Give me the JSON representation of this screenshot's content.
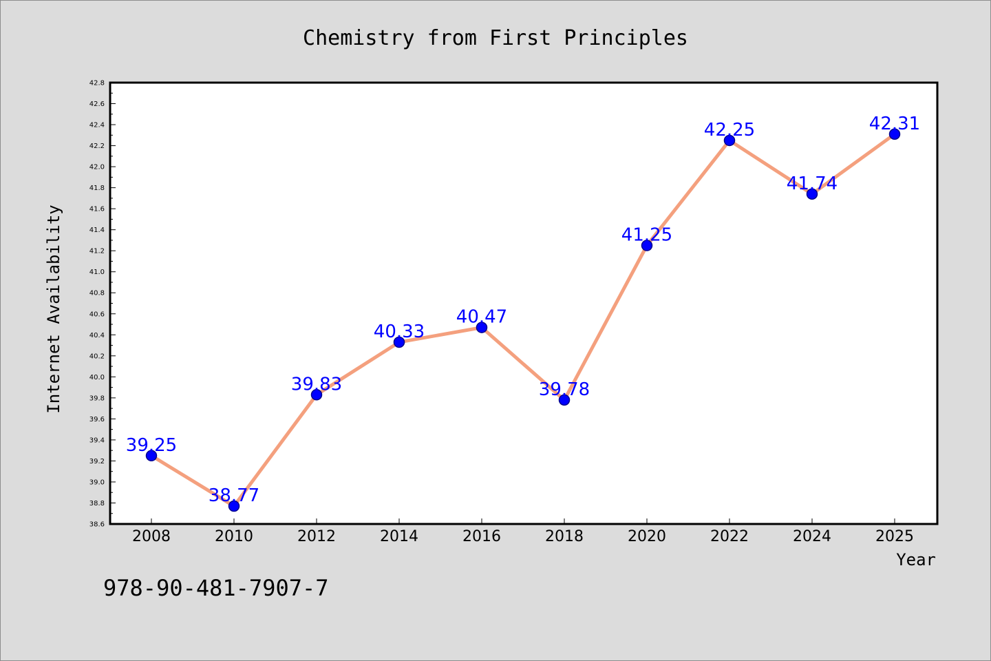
{
  "chart_data": {
    "type": "line",
    "title": "Chemistry from First Principles",
    "xlabel": "Year",
    "ylabel": "Internet Availability",
    "categories": [
      "2008",
      "2010",
      "2012",
      "2014",
      "2016",
      "2018",
      "2020",
      "2022",
      "2024",
      "2025"
    ],
    "series": [
      {
        "values": [
          39.25,
          38.77,
          39.83,
          40.33,
          40.47,
          39.78,
          41.25,
          42.25,
          41.74,
          42.31
        ],
        "labels": [
          "39.25",
          "38.77",
          "39.83",
          "40.33",
          "40.47",
          "39.78",
          "41.25",
          "42.25",
          "41.74",
          "42.31"
        ]
      }
    ],
    "ylim": [
      38.6,
      42.8
    ],
    "yticks": [
      "38.6",
      "38.8",
      "39.0",
      "39.2",
      "39.4",
      "39.6",
      "39.8",
      "40.0",
      "40.2",
      "40.4",
      "40.6",
      "40.8",
      "41.0",
      "41.2",
      "41.4",
      "41.6",
      "41.8",
      "42.0",
      "42.2",
      "42.4",
      "42.6",
      "42.8"
    ],
    "grid": false,
    "colors": {
      "line": "#f4a07e",
      "marker": "#0000ff",
      "marker_edge": "#00008b",
      "data_label": "#0000ff",
      "plot_background": "#ffffff",
      "figure_background": "#dcdcdc"
    }
  },
  "footer": {
    "isbn": "978-90-481-7907-7"
  }
}
